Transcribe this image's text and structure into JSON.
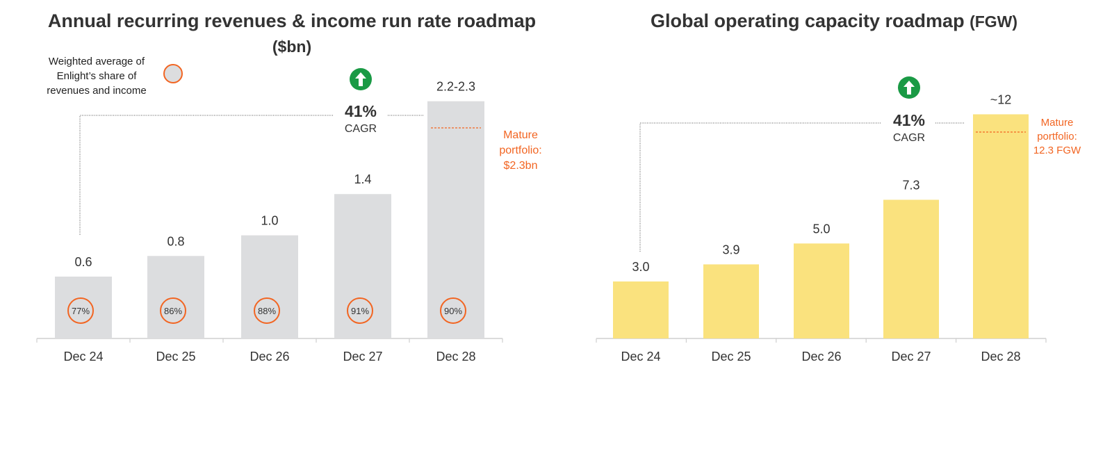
{
  "chart_data": [
    {
      "type": "bar",
      "title": "Annual recurring revenues & income run rate roadmap",
      "title_unit": "($bn)",
      "categories": [
        "Dec 24",
        "Dec 25",
        "Dec 26",
        "Dec 27",
        "Dec 28"
      ],
      "values": [
        0.6,
        0.8,
        1.0,
        1.4,
        2.3
      ],
      "value_labels": [
        "0.6",
        "0.8",
        "1.0",
        "1.4",
        "2.2-2.3"
      ],
      "share_labels": [
        "77%",
        "86%",
        "88%",
        "91%",
        "90%"
      ],
      "ylim": [
        0,
        2.5
      ],
      "bar_color": "#dcdddf",
      "cagr_value": "41%",
      "cagr_label": "CAGR",
      "legend_text": "Weighted average of Enlight’s share of revenues and income",
      "note": "Mature portfolio: $2.3bn",
      "note_color": "#f26522",
      "arrow_color": "#1a9a45"
    },
    {
      "type": "bar",
      "title": "Global operating capacity roadmap",
      "title_unit": "(FGW)",
      "categories": [
        "Dec 24",
        "Dec 25",
        "Dec 26",
        "Dec 27",
        "Dec 28"
      ],
      "values": [
        3.0,
        3.9,
        5.0,
        7.3,
        11.8
      ],
      "value_labels": [
        "3.0",
        "3.9",
        "5.0",
        "7.3",
        "~12"
      ],
      "ylim": [
        0,
        13.5
      ],
      "bar_color": "#fae27e",
      "cagr_value": "41%",
      "cagr_label": "CAGR",
      "note": "Mature portfolio: 12.3 FGW",
      "note_color": "#f26522",
      "arrow_color": "#1a9a45"
    }
  ]
}
